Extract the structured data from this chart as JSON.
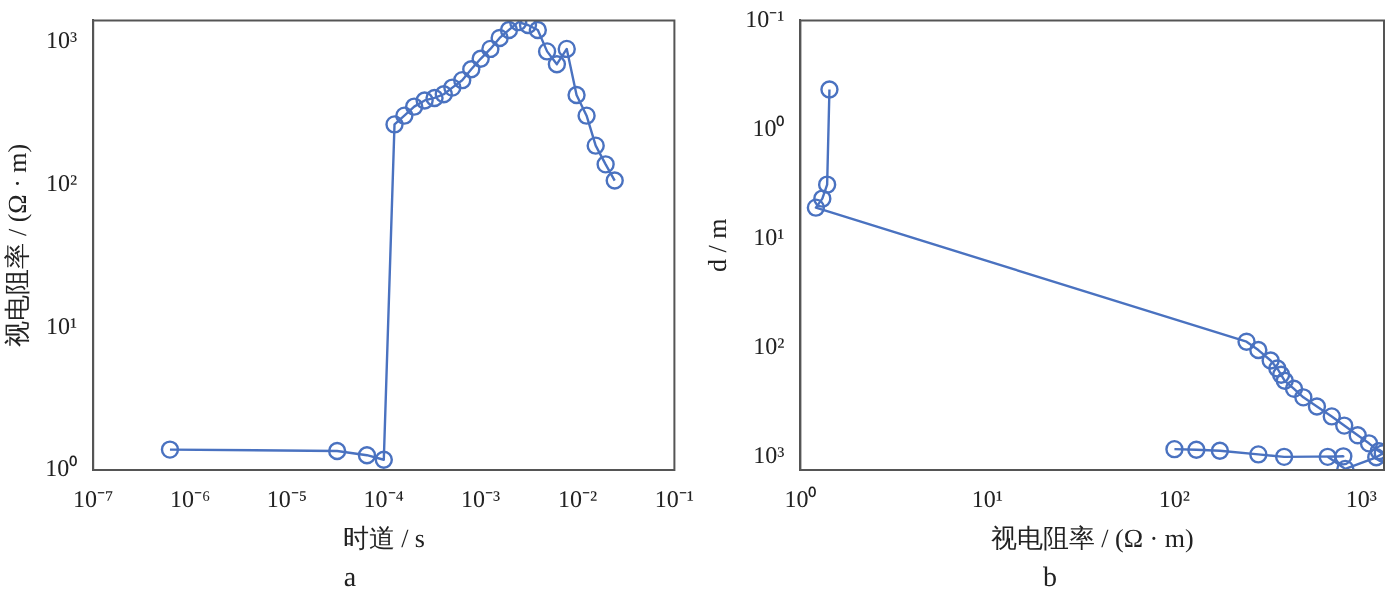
{
  "chart_data": [
    {
      "type": "line",
      "xlabel": "时道 / s",
      "ylabel": "视电阻率 / (Ω · m)",
      "log": "xy",
      "grid": false,
      "legend": false,
      "marker": "circle",
      "line_style": "solid",
      "annotations": [
        "a"
      ],
      "xlim": [
        1e-07,
        0.1
      ],
      "xticks": [
        {
          "value": 1e-07,
          "label": "10⁻⁷"
        },
        {
          "value": 1e-06,
          "label": "10⁻⁶"
        },
        {
          "value": 1e-05,
          "label": "10⁻⁵"
        },
        {
          "value": 0.0001,
          "label": "10⁻⁴"
        },
        {
          "value": 0.001,
          "label": "10⁻³"
        },
        {
          "value": 0.01,
          "label": "10⁻²"
        },
        {
          "value": 0.1,
          "label": "10⁻¹"
        }
      ],
      "ylim": [
        1,
        1420
      ],
      "yticks": [
        {
          "value": 1,
          "label": "10⁰"
        },
        {
          "value": 10,
          "label": "10¹"
        },
        {
          "value": 100,
          "label": "10²"
        },
        {
          "value": 1000,
          "label": "10³"
        }
      ],
      "series": [
        {
          "color": "#4a72c0",
          "x": [
            6.2e-07,
            3.3e-05,
            6.7e-05,
            0.0001,
            0.000129,
            0.000163,
            0.000206,
            0.000264,
            0.000334,
            0.000416,
            0.00051,
            0.000645,
            0.0008,
            0.001,
            0.00126,
            0.00157,
            0.00196,
            0.00244,
            0.00308,
            0.00389,
            0.00485,
            0.00612,
            0.00774,
            0.00977,
            0.0124,
            0.0154,
            0.0195,
            0.0242
          ],
          "values": [
            1.39,
            1.36,
            1.27,
            1.18,
            265,
            305,
            353,
            390,
            406,
            431,
            480,
            541,
            646,
            764,
            896,
            1070,
            1217,
            1380,
            1318,
            1217,
            861,
            700,
            896,
            426,
            305,
            188,
            139,
            107
          ]
        }
      ]
    },
    {
      "type": "line",
      "xlabel": "视电阻率 / (Ω · m)",
      "ylabel": "d / m",
      "log": "xy",
      "grid": false,
      "legend": false,
      "marker": "circle",
      "line_style": "solid",
      "annotations": [
        "b"
      ],
      "xlim": [
        1,
        1320
      ],
      "xticks": [
        {
          "value": 1,
          "label": "10⁰"
        },
        {
          "value": 10,
          "label": "10¹"
        },
        {
          "value": 100,
          "label": "10²"
        },
        {
          "value": 1000,
          "label": "10³"
        }
      ],
      "ylim": [
        1320,
        0.1
      ],
      "yticks": [
        {
          "value": 0.1,
          "label": "10⁻¹"
        },
        {
          "value": 1,
          "label": "10⁰"
        },
        {
          "value": 10,
          "label": "10¹"
        },
        {
          "value": 100,
          "label": "10²"
        },
        {
          "value": 1000,
          "label": "10³"
        }
      ],
      "series": [
        {
          "color": "#4a72c0",
          "x": [
            1.43,
            1.39,
            1.31,
            1.21,
            243,
            281,
            327,
            355,
            372,
            389,
            436,
            489,
            578,
            694,
            809,
            955,
            1097,
            1239,
            1300,
            1200,
            820,
            660,
            800,
            386,
            281,
            175,
            131,
            100
          ],
          "values": [
            0.43,
            3.2,
            4.3,
            5.2,
            88,
            105,
            131,
            155,
            177,
            201,
            238,
            285,
            346,
            426,
            517,
            635,
            752,
            889,
            930,
            1010,
            1290,
            1000,
            990,
            1000,
            950,
            880,
            860,
            850
          ]
        }
      ]
    }
  ]
}
